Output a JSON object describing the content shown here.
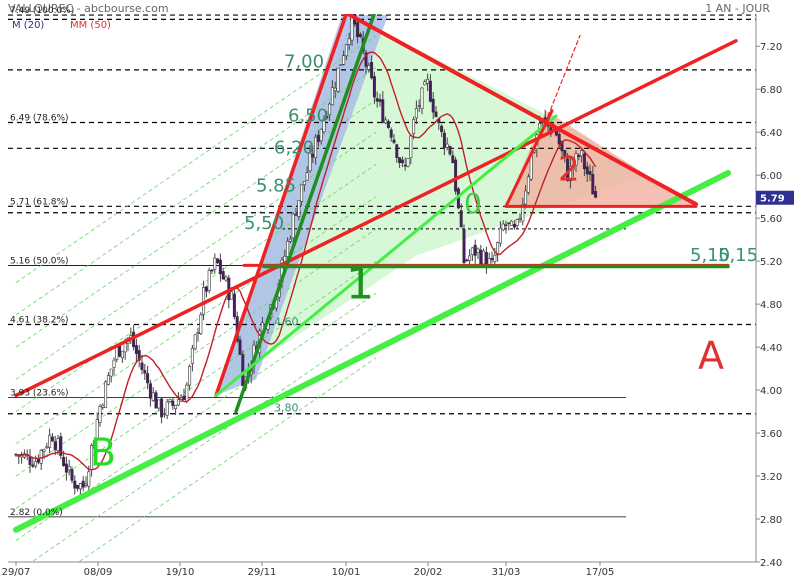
{
  "header": {
    "title": "VALLOUREC - abcbourse.com",
    "period": "1 AN - JOUR"
  },
  "chart_data": {
    "type": "candlestick",
    "title": "VALLOUREC",
    "source": "abcbourse.com",
    "period_label": "1 AN - JOUR",
    "ylim": [
      2.4,
      7.5
    ],
    "yticks": [
      2.4,
      2.8,
      3.2,
      3.6,
      4.0,
      4.4,
      4.8,
      5.2,
      5.6,
      6.0,
      6.4,
      6.8,
      7.2
    ],
    "ytick_labels": [
      "2.40",
      "2.80",
      "3.20",
      "3.60",
      "4.00",
      "4.40",
      "4.80",
      "5.20",
      "5.60",
      "6.00",
      "6.40",
      "6.80",
      "7.20"
    ],
    "xticks": [
      "29/07",
      "08/09",
      "19/10",
      "29/11",
      "10/01",
      "20/02",
      "31/03",
      "17/05"
    ],
    "last_price": 5.79,
    "last_price_label": "5.79",
    "legend": [
      {
        "label": "M (20)",
        "color": "#2e3192"
      },
      {
        "label": "MM (50)",
        "color": "#e03030"
      }
    ],
    "fibonacci": [
      {
        "price": 7.49,
        "label": "7.49  (100.0%)"
      },
      {
        "price": 6.49,
        "label": "6.49  (78.6%)"
      },
      {
        "price": 5.71,
        "label": "5.71  (61.8%)"
      },
      {
        "price": 5.16,
        "label": "5.16  (50.0%)"
      },
      {
        "price": 4.61,
        "label": "4.61  (38.2%)"
      },
      {
        "price": 3.93,
        "label": "3.93  (23.6%)"
      },
      {
        "price": 2.82,
        "label": "2.82  (0.0%)"
      }
    ],
    "dashed_levels": [
      7.49,
      7.45,
      6.98,
      6.49,
      6.25,
      5.71,
      5.65,
      4.61,
      3.78
    ],
    "solid_levels": [
      5.16,
      3.93,
      2.82
    ],
    "annotations": [
      {
        "text": "7,00",
        "x_date": "10/12",
        "y": 7.0,
        "color": "#3a9070",
        "size": 18
      },
      {
        "text": "6,50",
        "x_date": "12/12",
        "y": 6.5,
        "color": "#3a9070",
        "size": 18
      },
      {
        "text": "6,20",
        "x_date": "05/12",
        "y": 6.2,
        "color": "#3a9070",
        "size": 18
      },
      {
        "text": "5.85",
        "x_date": "26/11",
        "y": 5.85,
        "color": "#3a9070",
        "size": 18
      },
      {
        "text": "5,50",
        "x_date": "20/11",
        "y": 5.5,
        "color": "#3a9070",
        "size": 18
      },
      {
        "text": "5,10",
        "x_date": "01/07",
        "y": 5.2,
        "color": "#3a9070",
        "size": 18
      },
      {
        "text": "5,15",
        "x_date": "15/07",
        "y": 5.2,
        "color": "#3a9070",
        "size": 18
      },
      {
        "text": "4,60",
        "x_date": "05/12",
        "y": 4.6,
        "color": "#3a9070",
        "size": 11
      },
      {
        "text": "3,80",
        "x_date": "05/12",
        "y": 3.8,
        "color": "#3a9070",
        "size": 11
      },
      {
        "text": "A",
        "x_date": "05/07",
        "y": 4.2,
        "color": "#e03030",
        "size": 38
      },
      {
        "text": "B",
        "x_date": "04/09",
        "y": 3.3,
        "color": "#22dd22",
        "size": 38
      },
      {
        "text": "1",
        "x_date": "10/01",
        "y": 4.85,
        "color": "#1f8f1f",
        "size": 44
      },
      {
        "text": "0",
        "x_date": "10/03",
        "y": 5.65,
        "color": "#44cc44",
        "size": 28
      },
      {
        "text": "2",
        "x_date": "26/04",
        "y": 5.95,
        "color": "#e03030",
        "size": 34
      }
    ]
  }
}
